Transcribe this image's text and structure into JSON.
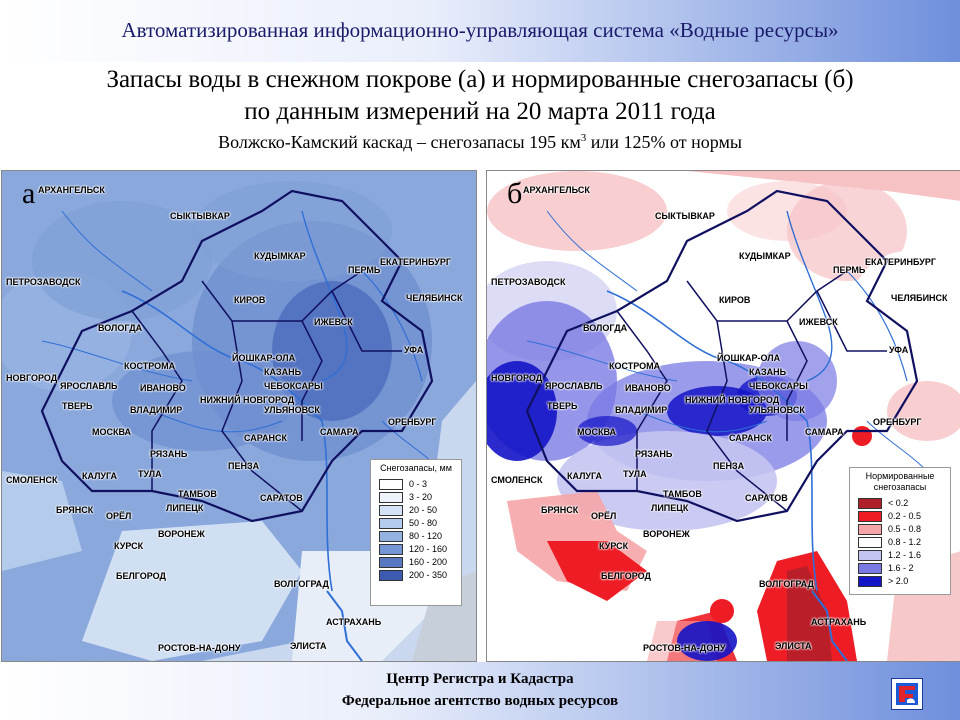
{
  "header": {
    "system_title": "Автоматизированная информационно-управляющая система «Водные ресурсы»",
    "title_line1": "Запасы воды в снежном покрове (а) и нормированные снегозапасы (б)",
    "title_line2": "по данным измерений на 20 марта 2011 года",
    "subtitle_before_sup": "Волжско-Камский каскад – снегозапасы 195 км",
    "subtitle_sup": "3",
    "subtitle_after_sup": " или 125% от нормы"
  },
  "map_a": {
    "letter": "а",
    "legend_title": "Снегозапасы, мм",
    "legend": [
      {
        "label": "0 - 3",
        "color": "#ffffff"
      },
      {
        "label": "3 - 20",
        "color": "#eef3fb"
      },
      {
        "label": "20 - 50",
        "color": "#d3e2f5"
      },
      {
        "label": "50 - 80",
        "color": "#b3cbed"
      },
      {
        "label": "80 - 120",
        "color": "#93b2e2"
      },
      {
        "label": "120 - 160",
        "color": "#7496d4"
      },
      {
        "label": "160 - 200",
        "color": "#5878c2"
      },
      {
        "label": "200 - 350",
        "color": "#3c5ab0"
      }
    ]
  },
  "map_b": {
    "letter": "б",
    "legend_title_line1": "Нормированные",
    "legend_title_line2": "снегозапасы",
    "legend": [
      {
        "label": "< 0.2",
        "color": "#b0202a"
      },
      {
        "label": "0.2 - 0.5",
        "color": "#ee1c24"
      },
      {
        "label": "0.5 - 0.8",
        "color": "#f6a5a8"
      },
      {
        "label": "0.8 - 1.2",
        "color": "#ffffff"
      },
      {
        "label": "1.2 - 1.6",
        "color": "#c4c4f2"
      },
      {
        "label": "1.6 - 2",
        "color": "#7a7ae4"
      },
      {
        "label": "> 2.0",
        "color": "#1414c8"
      }
    ]
  },
  "cities": [
    "АРХАНГЕЛЬСК",
    "СЫКТЫВКАР",
    "КУДЫМКАР",
    "ЕКАТЕРИНБУРГ",
    "ПЕРМЬ",
    "ПЕТРОЗАВОДСК",
    "ЧЕЛЯБИНСК",
    "КИРОВ",
    "ВОЛОГДА",
    "ИЖЕВСК",
    "УФА",
    "ЙОШКАР-ОЛА",
    "КОСТРОМА",
    "КАЗАНЬ",
    "НОВГОРОД",
    "ЯРОСЛАВЛЬ",
    "ИВАНОВО",
    "ЧЕБОКСАРЫ",
    "НИЖНИЙ НОВГОРОД",
    "УЛЬЯНОВСК",
    "ТВЕРЬ",
    "ВЛАДИМИР",
    "САМАРА",
    "ОРЕНБУРГ",
    "МОСКВА",
    "САРАНСК",
    "РЯЗАНЬ",
    "ПЕНЗА",
    "СМОЛЕНСК",
    "КАЛУГА",
    "ТУЛА",
    "ТАМБОВ",
    "САРАТОВ",
    "БРЯНСК",
    "ОРЁЛ",
    "ЛИПЕЦК",
    "ВОРОНЕЖ",
    "КУРСК",
    "БЕЛГОРОД",
    "ВОЛГОГРАД",
    "АСТРАХАНЬ",
    "РОСТОВ-НА-ДОНУ",
    "ЭЛИСТА"
  ],
  "footer": {
    "line1": "Центр Регистра и Кадастра",
    "line2": "Федеральное агентство водных ресурсов"
  },
  "colors": {
    "header_text": "#1a1a6b",
    "map_a_base": "#7f9fd6",
    "map_b_base": "#ffffff",
    "basin_border": "#101060",
    "river": "#2f6fd6"
  }
}
